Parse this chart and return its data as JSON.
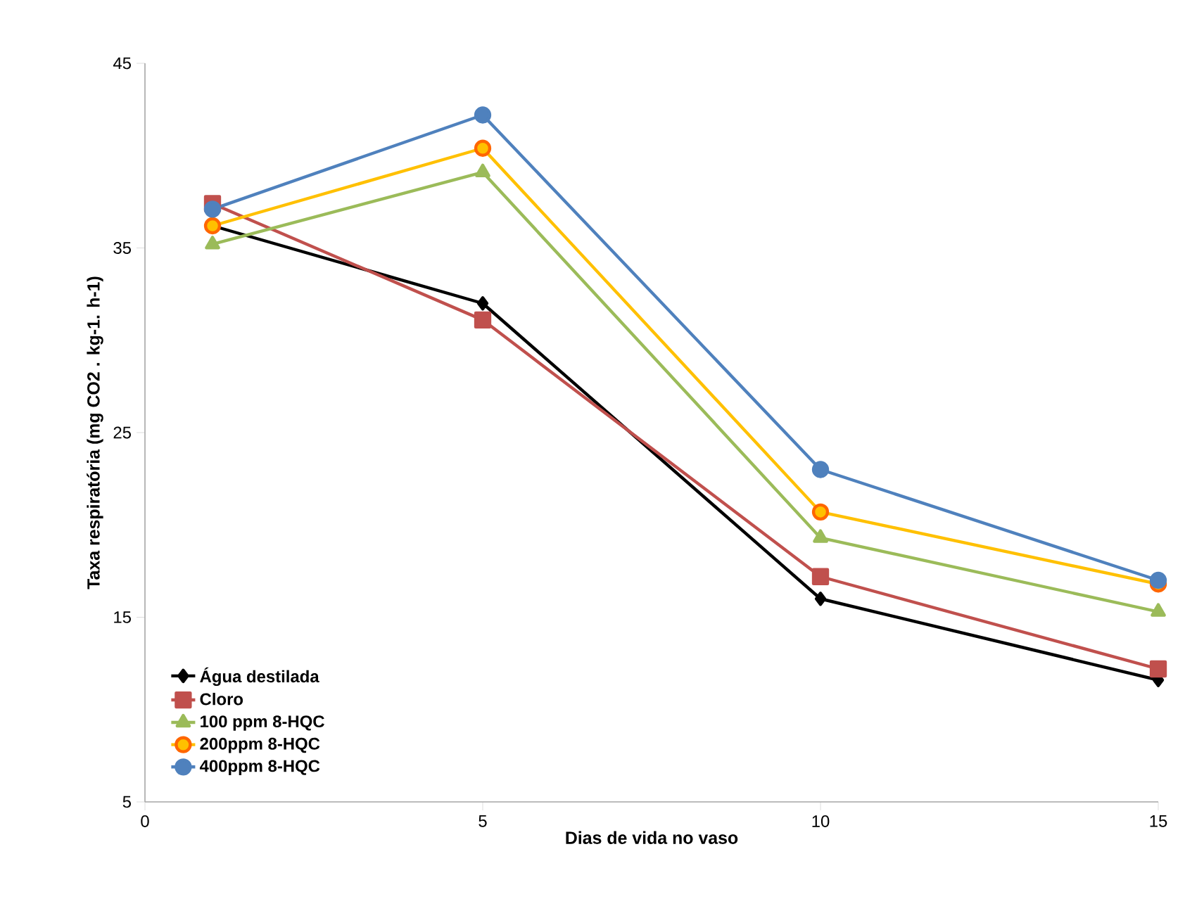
{
  "chart_data": {
    "type": "line",
    "xlabel": "Dias de vida no vaso",
    "ylabel": "Taxa respiratória (mg CO2 . kg-1. h-1)",
    "xlim": [
      0,
      15
    ],
    "xticks": [
      0,
      5,
      10,
      15
    ],
    "ylim": [
      5,
      45
    ],
    "yticks": [
      5,
      15,
      25,
      35,
      45
    ],
    "grid": false,
    "legend": "bottom left",
    "line_style": "solid",
    "series": [
      {
        "name": "Água destilada",
        "color": "#000000",
        "marker": "diamond",
        "x": [
          1,
          5,
          10,
          15
        ],
        "values": [
          36.2,
          32.0,
          16.0,
          11.6
        ]
      },
      {
        "name": "Cloro",
        "color": "#c0504d",
        "marker": "square",
        "x": [
          1,
          5,
          10,
          15
        ],
        "values": [
          37.4,
          31.1,
          17.2,
          12.2
        ]
      },
      {
        "name": "100 ppm 8-HQC",
        "color": "#9bbb59",
        "marker": "triangle",
        "x": [
          1,
          5,
          10,
          15
        ],
        "values": [
          35.2,
          39.1,
          19.3,
          15.3
        ]
      },
      {
        "name": "200ppm 8-HQC",
        "color": "#ffc000",
        "marker": "circle",
        "x": [
          1,
          5,
          10,
          15
        ],
        "values": [
          36.2,
          40.4,
          20.7,
          16.8
        ]
      },
      {
        "name": "400ppm 8-HQC",
        "color": "#4f81bd",
        "marker": "circle",
        "x": [
          1,
          5,
          10,
          15
        ],
        "values": [
          37.1,
          42.2,
          23.0,
          17.0
        ]
      }
    ]
  }
}
